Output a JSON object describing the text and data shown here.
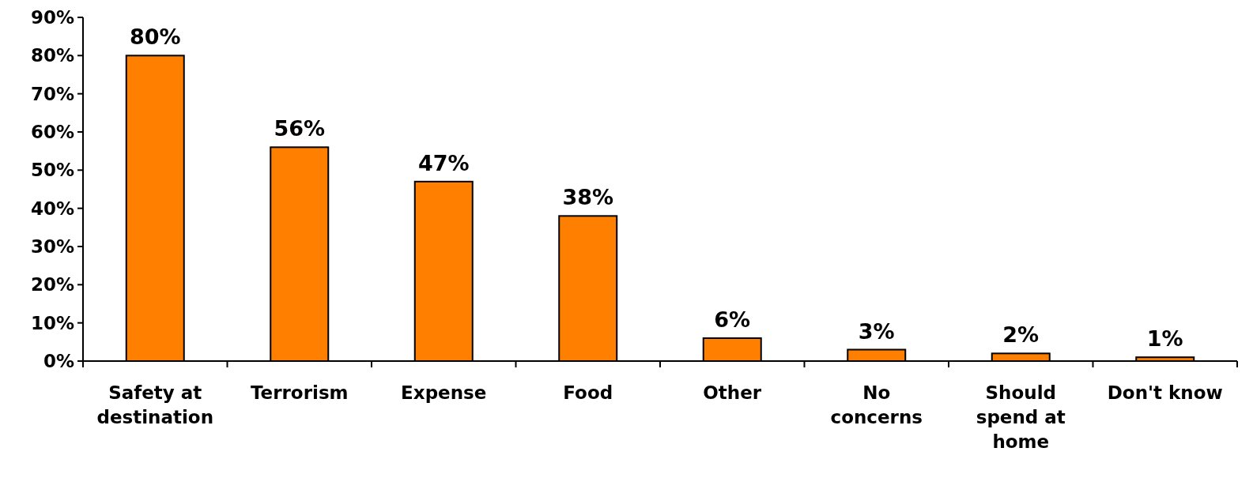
{
  "chart_data": {
    "type": "bar",
    "categories": [
      "Safety at destination",
      "Terrorism",
      "Expense",
      "Food",
      "Other",
      "No concerns",
      "Should spend at home",
      "Don't know"
    ],
    "values": [
      80,
      56,
      47,
      38,
      6,
      3,
      2,
      1
    ],
    "color": "#ff8000",
    "ylim": [
      0,
      90
    ],
    "yticks": [
      {
        "value": 0,
        "label": "0%"
      },
      {
        "value": 10,
        "label": "10%"
      },
      {
        "value": 20,
        "label": "20%"
      },
      {
        "value": 30,
        "label": "30%"
      },
      {
        "value": 40,
        "label": "40%"
      },
      {
        "value": 50,
        "label": "50%"
      },
      {
        "value": 60,
        "label": "60%"
      },
      {
        "value": 70,
        "label": "70%"
      },
      {
        "value": 80,
        "label": "80%"
      },
      {
        "value": 90,
        "label": "90%"
      }
    ],
    "value_labels": [
      "80%",
      "56%",
      "47%",
      "38%",
      "6%",
      "3%",
      "2%",
      "1%"
    ]
  }
}
